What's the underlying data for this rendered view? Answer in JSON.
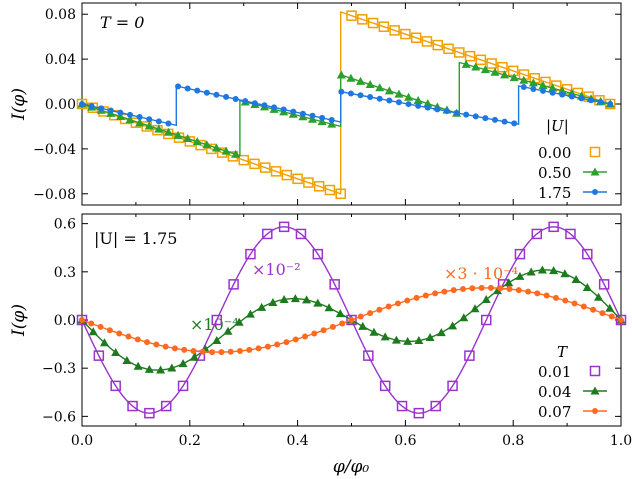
{
  "figure": {
    "x_ticks": [
      "0.0",
      "0.2",
      "0.4",
      "0.6",
      "0.8",
      "1.0"
    ]
  },
  "chart_data": [
    {
      "type": "line",
      "annotation": "T = 0",
      "xlabel": "",
      "ylabel": "I(φ)",
      "xlim": [
        0,
        1
      ],
      "ylim": [
        -0.09,
        0.09
      ],
      "yticks": [
        -0.08,
        -0.04,
        0.0,
        0.04,
        0.08
      ],
      "ytick_labels": [
        "−0.08",
        "−0.04",
        "0.00",
        "0.04",
        "0.08"
      ],
      "legend_title": "|U|",
      "legend_position": "bottom-right",
      "series": [
        {
          "name": "0.00",
          "color": "#f0a000",
          "marker": "open-square",
          "x": [
            0.0,
            0.48,
            0.48,
            0.98
          ],
          "y": [
            0.0,
            -0.08,
            0.082,
            0.0
          ]
        },
        {
          "name": "0.50",
          "color": "#2ca02c",
          "marker": "triangle",
          "x": [
            0.0,
            0.293,
            0.293,
            0.48,
            0.48,
            0.7,
            0.7,
            0.98
          ],
          "y": [
            0.0,
            -0.046,
            0.003,
            -0.02,
            0.026,
            -0.009,
            0.037,
            0.0
          ]
        },
        {
          "name": "1.75",
          "color": "#1f77e0",
          "marker": "filled-circle",
          "x": [
            0.0,
            0.175,
            0.175,
            0.48,
            0.48,
            0.81,
            0.81,
            0.98
          ],
          "y": [
            0.0,
            -0.019,
            0.016,
            -0.016,
            0.011,
            -0.018,
            0.016,
            0.0
          ]
        }
      ]
    },
    {
      "type": "line",
      "annotation": "|U| = 1.75",
      "xlabel": "φ/φ₀",
      "ylabel": "I(φ)",
      "xlim": [
        0,
        1
      ],
      "ylim": [
        -0.66,
        0.66
      ],
      "yticks": [
        -0.6,
        -0.3,
        0.0,
        0.3,
        0.6
      ],
      "ytick_labels": [
        "−0.6",
        "−0.3",
        "0.0",
        "0.3",
        "0.6"
      ],
      "legend_title": "T",
      "legend_position": "bottom-right",
      "series": [
        {
          "name": "0.01",
          "color": "#9a33cc",
          "marker": "open-square",
          "scale_label": "×10⁻²",
          "amplitude": 0.58,
          "form": "-A*sin(4*pi*x)"
        },
        {
          "name": "0.04",
          "color": "#1e7a1e",
          "marker": "triangle",
          "scale_label": "×10⁻⁴",
          "amplitude": 0.335,
          "form": "-A*(0.65*sin(4*pi*x)+0.38*sin(2*pi*x))"
        },
        {
          "name": "0.07",
          "color": "#ff6a20",
          "marker": "filled-circle",
          "scale_label": "×3 · 10⁻⁴",
          "amplitude": 0.2,
          "form": "-A*sin(2*pi*x)"
        }
      ]
    }
  ]
}
